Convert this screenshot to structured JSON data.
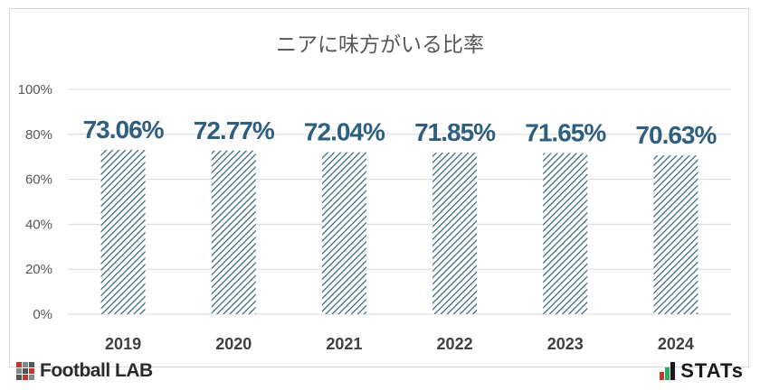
{
  "chart_data": {
    "type": "bar",
    "title": "ニアに味方がいる比率",
    "categories": [
      "2019",
      "2020",
      "2021",
      "2022",
      "2023",
      "2024"
    ],
    "values": [
      73.06,
      72.77,
      72.04,
      71.85,
      71.65,
      70.63
    ],
    "data_labels": [
      "73.06%",
      "72.77%",
      "72.04%",
      "71.85%",
      "71.65%",
      "70.63%"
    ],
    "ylim": [
      0,
      100
    ],
    "yticks": [
      "0%",
      "20%",
      "40%",
      "60%",
      "80%",
      "100%"
    ],
    "grid": true,
    "legend": "none",
    "bar_color": "#2e5f7e",
    "label_color": "#2e5f7e"
  },
  "logos": {
    "left_text": "Football LAB",
    "right_text": "STATs"
  }
}
